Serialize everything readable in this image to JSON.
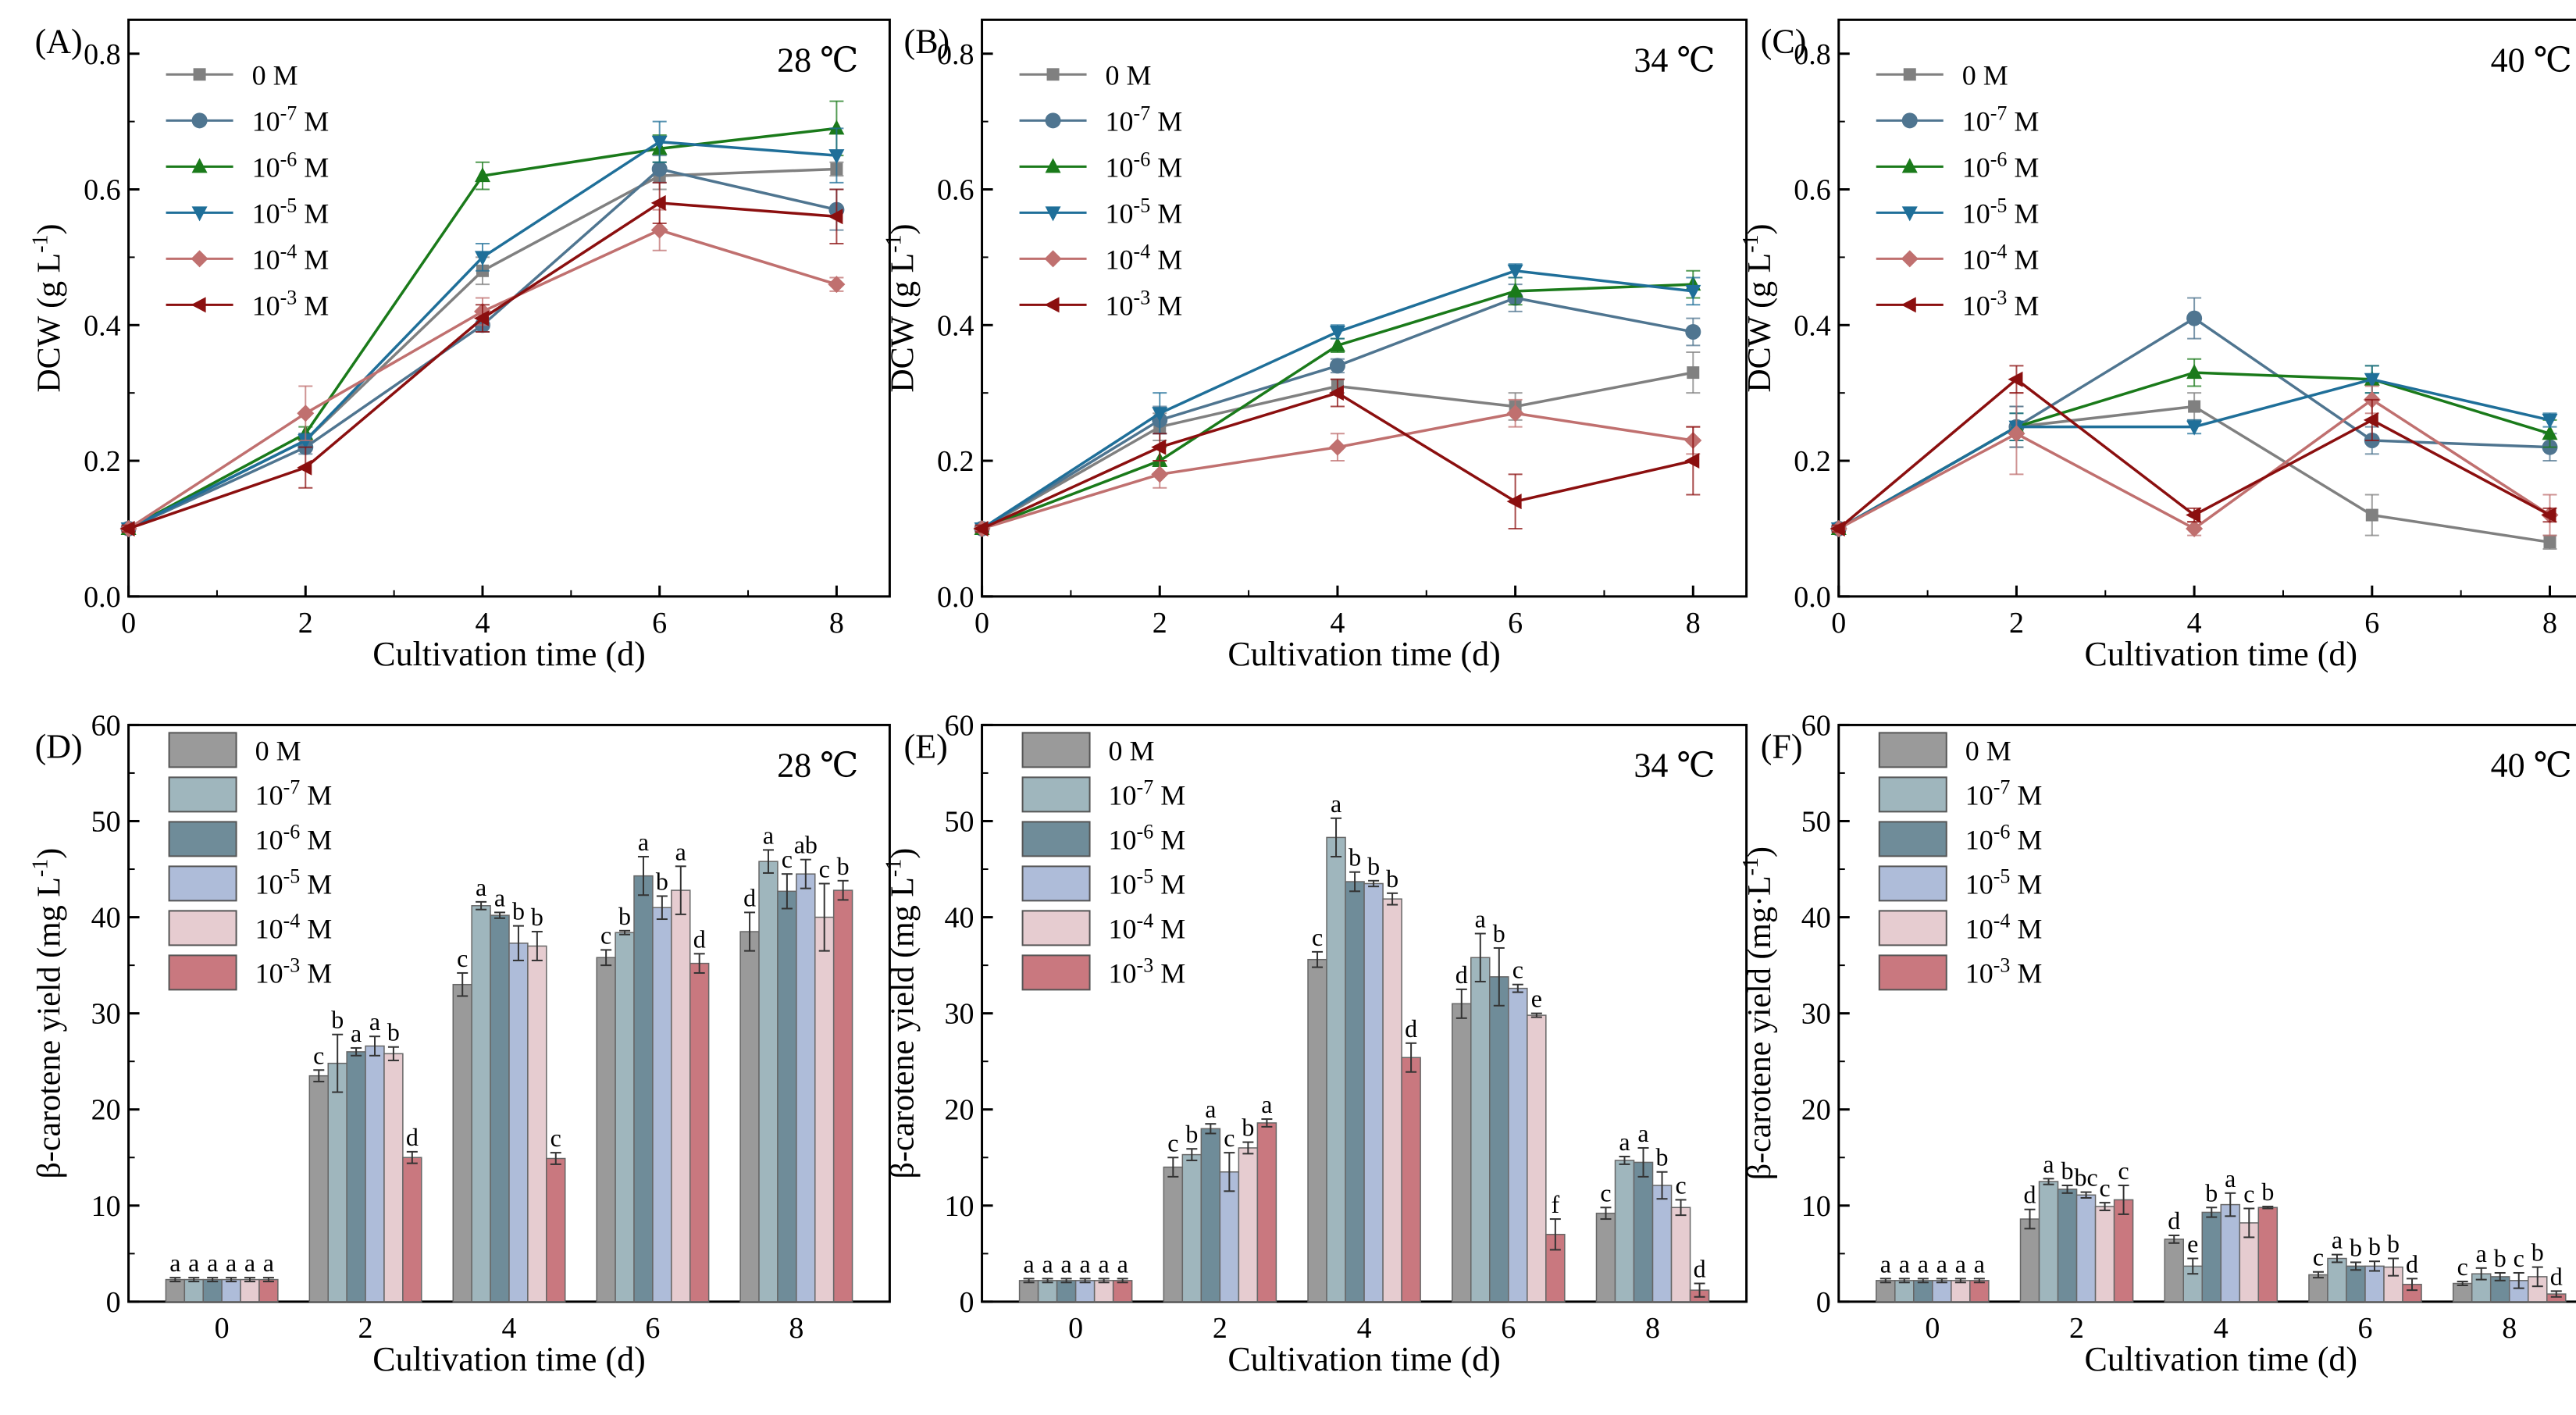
{
  "shared": {
    "xlabel": "Cultivation time (d)",
    "legend_concentrations": [
      {
        "base": "0 M",
        "exp": ""
      },
      {
        "base": "10",
        "exp": "-7",
        "unit": " M"
      },
      {
        "base": "10",
        "exp": "-6",
        "unit": " M"
      },
      {
        "base": "10",
        "exp": "-5",
        "unit": " M"
      },
      {
        "base": "10",
        "exp": "-4",
        "unit": " M"
      },
      {
        "base": "10",
        "exp": "-3",
        "unit": " M"
      }
    ],
    "line_colors": [
      "#808080",
      "#4f7590",
      "#1a7a1a",
      "#1f6f99",
      "#c0706f",
      "#8b0f0f"
    ],
    "line_markers": [
      "square",
      "circle",
      "triangle-up",
      "triangle-down",
      "diamond",
      "triangle-left"
    ],
    "bar_colors": [
      "#9a9a9a",
      "#9fb6bd",
      "#6f8c99",
      "#aebcd9",
      "#e6ccd0",
      "#c9787f"
    ]
  },
  "chart_data": [
    {
      "panel": "(A)",
      "type": "line",
      "temperature": "28 ℃",
      "ylabel": "DCW (g L",
      "ylabel_sup": "-1",
      "ylabel_end": ")",
      "x": [
        0,
        2,
        4,
        6,
        8
      ],
      "xlim": [
        0,
        8.6
      ],
      "ylim": [
        0,
        0.85
      ],
      "yticks": [
        "0.0",
        "0.2",
        "0.4",
        "0.6",
        "0.8"
      ],
      "xticks": [
        "0",
        "2",
        "4",
        "6",
        "8"
      ],
      "series": [
        {
          "name": "0 M",
          "values": [
            0.1,
            0.23,
            0.48,
            0.62,
            0.63
          ],
          "err": [
            0.005,
            0.01,
            0.02,
            0.02,
            0.01
          ]
        },
        {
          "name": "10-7 M",
          "values": [
            0.1,
            0.22,
            0.4,
            0.63,
            0.57
          ],
          "err": [
            0.005,
            0.01,
            0.01,
            0.02,
            0.03
          ]
        },
        {
          "name": "10-6 M",
          "values": [
            0.1,
            0.24,
            0.62,
            0.66,
            0.69
          ],
          "err": [
            0.005,
            0.01,
            0.02,
            0.02,
            0.04
          ]
        },
        {
          "name": "10-5 M",
          "values": [
            0.1,
            0.23,
            0.5,
            0.67,
            0.65
          ],
          "err": [
            0.005,
            0.01,
            0.02,
            0.03,
            0.04
          ]
        },
        {
          "name": "10-4 M",
          "values": [
            0.1,
            0.27,
            0.42,
            0.54,
            0.46
          ],
          "err": [
            0.005,
            0.04,
            0.02,
            0.03,
            0.01
          ]
        },
        {
          "name": "10-3 M",
          "values": [
            0.1,
            0.19,
            0.41,
            0.58,
            0.56
          ],
          "err": [
            0.005,
            0.03,
            0.02,
            0.03,
            0.04
          ]
        }
      ]
    },
    {
      "panel": "(B)",
      "type": "line",
      "temperature": "34 ℃",
      "ylabel": "DCW (g L",
      "ylabel_sup": "-1",
      "ylabel_end": ")",
      "x": [
        0,
        2,
        4,
        6,
        8
      ],
      "xlim": [
        0,
        8.6
      ],
      "ylim": [
        0,
        0.85
      ],
      "yticks": [
        "0.0",
        "0.2",
        "0.4",
        "0.6",
        "0.8"
      ],
      "xticks": [
        "0",
        "2",
        "4",
        "6",
        "8"
      ],
      "series": [
        {
          "name": "0 M",
          "values": [
            0.1,
            0.25,
            0.31,
            0.28,
            0.33
          ],
          "err": [
            0.005,
            0.02,
            0.01,
            0.02,
            0.03
          ]
        },
        {
          "name": "10-7 M",
          "values": [
            0.1,
            0.26,
            0.34,
            0.44,
            0.39
          ],
          "err": [
            0.005,
            0.02,
            0.01,
            0.02,
            0.02
          ]
        },
        {
          "name": "10-6 M",
          "values": [
            0.1,
            0.2,
            0.37,
            0.45,
            0.46
          ],
          "err": [
            0.005,
            0.02,
            0.01,
            0.02,
            0.02
          ]
        },
        {
          "name": "10-5 M",
          "values": [
            0.1,
            0.27,
            0.39,
            0.48,
            0.45
          ],
          "err": [
            0.005,
            0.03,
            0.01,
            0.01,
            0.02
          ]
        },
        {
          "name": "10-4 M",
          "values": [
            0.1,
            0.18,
            0.22,
            0.27,
            0.23
          ],
          "err": [
            0.005,
            0.02,
            0.02,
            0.02,
            0.02
          ]
        },
        {
          "name": "10-3 M",
          "values": [
            0.1,
            0.22,
            0.3,
            0.14,
            0.2
          ],
          "err": [
            0.005,
            0.02,
            0.02,
            0.04,
            0.05
          ]
        }
      ]
    },
    {
      "panel": "(C)",
      "type": "line",
      "temperature": "40 ℃",
      "ylabel": "DCW (g L",
      "ylabel_sup": "-1",
      "ylabel_end": ")",
      "x": [
        0,
        2,
        4,
        6,
        8
      ],
      "xlim": [
        0,
        8.6
      ],
      "ylim": [
        0,
        0.85
      ],
      "yticks": [
        "0.0",
        "0.2",
        "0.4",
        "0.6",
        "0.8"
      ],
      "xticks": [
        "0",
        "2",
        "4",
        "6",
        "8"
      ],
      "series": [
        {
          "name": "0 M",
          "values": [
            0.1,
            0.25,
            0.28,
            0.12,
            0.08
          ],
          "err": [
            0.005,
            0.03,
            0.02,
            0.03,
            0.01
          ]
        },
        {
          "name": "10-7 M",
          "values": [
            0.1,
            0.25,
            0.41,
            0.23,
            0.22
          ],
          "err": [
            0.005,
            0.03,
            0.03,
            0.02,
            0.02
          ]
        },
        {
          "name": "10-6 M",
          "values": [
            0.1,
            0.25,
            0.33,
            0.32,
            0.24
          ],
          "err": [
            0.005,
            0.02,
            0.02,
            0.02,
            0.02
          ]
        },
        {
          "name": "10-5 M",
          "values": [
            0.1,
            0.25,
            0.25,
            0.32,
            0.26
          ],
          "err": [
            0.005,
            0.02,
            0.01,
            0.02,
            0.01
          ]
        },
        {
          "name": "10-4 M",
          "values": [
            0.1,
            0.24,
            0.1,
            0.29,
            0.12
          ],
          "err": [
            0.005,
            0.06,
            0.01,
            0.02,
            0.03
          ]
        },
        {
          "name": "10-3 M",
          "values": [
            0.1,
            0.32,
            0.12,
            0.26,
            0.12
          ],
          "err": [
            0.005,
            0.02,
            0.01,
            0.03,
            0.01
          ]
        }
      ]
    },
    {
      "panel": "(D)",
      "type": "bar",
      "temperature": "28 ℃",
      "ylabel": "β-carotene yield (mg L",
      "ylabel_sup": "-1",
      "ylabel_end": ")",
      "categories": [
        "0",
        "2",
        "4",
        "6",
        "8"
      ],
      "ylim": [
        0,
        60
      ],
      "yticks": [
        "0",
        "10",
        "20",
        "30",
        "40",
        "50",
        "60"
      ],
      "series": [
        {
          "name": "0 M",
          "values": [
            2.3,
            23.5,
            33.0,
            35.8,
            38.5
          ],
          "err": [
            0.2,
            0.6,
            1.2,
            0.8,
            2.0
          ],
          "letters": [
            "a",
            "c",
            "c",
            "c",
            "d"
          ]
        },
        {
          "name": "10-7 M",
          "values": [
            2.3,
            24.8,
            41.2,
            38.4,
            45.8
          ],
          "err": [
            0.2,
            3.0,
            0.4,
            0.2,
            1.2
          ],
          "letters": [
            "a",
            "b",
            "a",
            "b",
            "a"
          ]
        },
        {
          "name": "10-6 M",
          "values": [
            2.3,
            26.0,
            40.2,
            44.3,
            42.7
          ],
          "err": [
            0.2,
            0.4,
            0.3,
            2.0,
            1.8
          ],
          "letters": [
            "a",
            "a",
            "a",
            "a",
            "c"
          ]
        },
        {
          "name": "10-5 M",
          "values": [
            2.3,
            26.6,
            37.3,
            41.0,
            44.5
          ],
          "err": [
            0.2,
            1.0,
            1.8,
            1.2,
            1.5
          ],
          "letters": [
            "a",
            "a",
            "b",
            "b",
            "ab"
          ]
        },
        {
          "name": "10-4 M",
          "values": [
            2.3,
            25.8,
            37.0,
            42.8,
            40.0
          ],
          "err": [
            0.2,
            0.7,
            1.5,
            2.5,
            3.5
          ],
          "letters": [
            "a",
            "b",
            "b",
            "a",
            "c"
          ]
        },
        {
          "name": "10-3 M",
          "values": [
            2.3,
            15.0,
            14.9,
            35.2,
            42.8
          ],
          "err": [
            0.2,
            0.6,
            0.6,
            1.0,
            1.0
          ],
          "letters": [
            "a",
            "d",
            "c",
            "d",
            "b"
          ]
        }
      ]
    },
    {
      "panel": "(E)",
      "type": "bar",
      "temperature": "34 ℃",
      "ylabel": "β-carotene yield (mg L",
      "ylabel_sup": "-1",
      "ylabel_end": ")",
      "categories": [
        "0",
        "2",
        "4",
        "6",
        "8"
      ],
      "ylim": [
        0,
        60
      ],
      "yticks": [
        "0",
        "10",
        "20",
        "30",
        "40",
        "50",
        "60"
      ],
      "series": [
        {
          "name": "0 M",
          "values": [
            2.2,
            14.0,
            35.6,
            31.0,
            9.2
          ],
          "err": [
            0.2,
            1.0,
            0.8,
            1.5,
            0.6
          ],
          "letters": [
            "a",
            "c",
            "c",
            "d",
            "c"
          ]
        },
        {
          "name": "10-7 M",
          "values": [
            2.2,
            15.3,
            48.3,
            35.8,
            14.7
          ],
          "err": [
            0.2,
            0.6,
            2.0,
            2.5,
            0.4
          ],
          "letters": [
            "a",
            "b",
            "a",
            "a",
            "a"
          ]
        },
        {
          "name": "10-6 M",
          "values": [
            2.2,
            18.0,
            43.7,
            33.8,
            14.5
          ],
          "err": [
            0.2,
            0.5,
            1.0,
            3.0,
            1.5
          ],
          "letters": [
            "a",
            "a",
            "b",
            "b",
            "a"
          ]
        },
        {
          "name": "10-5 M",
          "values": [
            2.2,
            13.5,
            43.5,
            32.6,
            12.1
          ],
          "err": [
            0.2,
            2.0,
            0.3,
            0.4,
            1.4
          ],
          "letters": [
            "a",
            "c",
            "b",
            "c",
            "b"
          ]
        },
        {
          "name": "10-4 M",
          "values": [
            2.2,
            16.0,
            41.9,
            29.8,
            9.8
          ],
          "err": [
            0.2,
            0.6,
            0.6,
            0.2,
            0.8
          ],
          "letters": [
            "a",
            "b",
            "b",
            "e",
            "c"
          ]
        },
        {
          "name": "10-3 M",
          "values": [
            2.2,
            18.6,
            25.4,
            7.0,
            1.2
          ],
          "err": [
            0.2,
            0.4,
            1.5,
            1.6,
            0.7
          ],
          "letters": [
            "a",
            "a",
            "d",
            "f",
            "d"
          ]
        }
      ]
    },
    {
      "panel": "(F)",
      "type": "bar",
      "temperature": "40 ℃",
      "ylabel": "β-carotene yield (mg·L",
      "ylabel_sup": "-1",
      "ylabel_end": ")",
      "categories": [
        "0",
        "2",
        "4",
        "6",
        "8"
      ],
      "ylim": [
        0,
        60
      ],
      "yticks": [
        "0",
        "10",
        "20",
        "30",
        "40",
        "50",
        "60"
      ],
      "series": [
        {
          "name": "0 M",
          "values": [
            2.2,
            8.6,
            6.5,
            2.8,
            1.9
          ],
          "err": [
            0.2,
            1.0,
            0.4,
            0.3,
            0.2
          ],
          "letters": [
            "a",
            "d",
            "d",
            "c",
            "c"
          ]
        },
        {
          "name": "10-7 M",
          "values": [
            2.2,
            12.5,
            3.7,
            4.5,
            2.9
          ],
          "err": [
            0.2,
            0.3,
            0.8,
            0.4,
            0.6
          ],
          "letters": [
            "a",
            "a",
            "e",
            "a",
            "a"
          ]
        },
        {
          "name": "10-6 M",
          "values": [
            2.2,
            11.7,
            9.3,
            3.7,
            2.6
          ],
          "err": [
            0.2,
            0.4,
            0.5,
            0.4,
            0.4
          ],
          "letters": [
            "a",
            "b",
            "b",
            "b",
            "b"
          ]
        },
        {
          "name": "10-5 M",
          "values": [
            2.2,
            11.1,
            10.1,
            3.7,
            2.2
          ],
          "err": [
            0.2,
            0.3,
            1.2,
            0.5,
            0.8
          ],
          "letters": [
            "a",
            "bc",
            "a",
            "b",
            "c"
          ]
        },
        {
          "name": "10-4 M",
          "values": [
            2.2,
            9.9,
            8.2,
            3.6,
            2.6
          ],
          "err": [
            0.2,
            0.4,
            1.5,
            0.9,
            1.0
          ],
          "letters": [
            "a",
            "c",
            "c",
            "b",
            "b"
          ]
        },
        {
          "name": "10-3 M",
          "values": [
            2.2,
            10.6,
            9.8,
            1.8,
            0.8
          ],
          "err": [
            0.2,
            1.5,
            0.1,
            0.6,
            0.3
          ],
          "letters": [
            "a",
            "c",
            "b",
            "d",
            "d"
          ]
        }
      ]
    }
  ]
}
